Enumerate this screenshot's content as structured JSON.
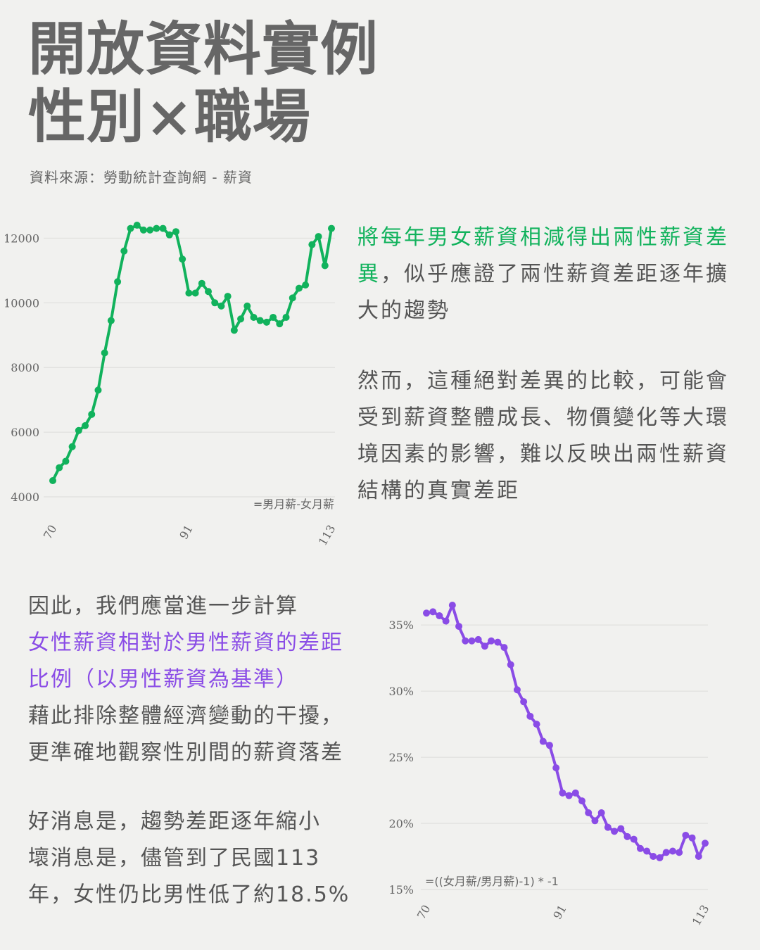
{
  "header": {
    "title_line1": "開放資料實例",
    "title_line2": "性別×職場",
    "source": "資料來源：勞動統計查詢網 - 薪資"
  },
  "text": {
    "p1_green": "將每年男女薪資相減得出兩性薪資差異",
    "p1_rest": "，似乎應證了兩性薪資差距逐年擴大的趨勢",
    "p2": "然而，這種絕對差異的比較，可能會受到薪資整體成長、物價變化等大環境因素的影響，難以反映出兩性薪資結構的真實差距",
    "p3_line1": "因此，我們應當進一步計算",
    "p3_purple_line1": "女性薪資相對於男性薪資的差距",
    "p3_purple_line2": "比例（以男性薪資為基準）",
    "p3_line4": "藉此排除整體經濟變動的干擾，",
    "p3_line5": "更準確地觀察性別間的薪資落差",
    "p4_line1": "好消息是，趨勢差距逐年縮小",
    "p4_line2": "壞消息是，儘管到了民國113",
    "p4_line3": "年，女性仍比男性低了約18.5%"
  },
  "chart_data": [
    {
      "type": "line",
      "color": "#11b25c",
      "annotation": "=男月薪-女月薪",
      "x": [
        70,
        71,
        72,
        73,
        74,
        75,
        76,
        77,
        78,
        79,
        80,
        81,
        82,
        83,
        84,
        85,
        86,
        87,
        88,
        89,
        90,
        91,
        92,
        93,
        94,
        95,
        96,
        97,
        98,
        99,
        100,
        101,
        102,
        103,
        104,
        105,
        106,
        107,
        108,
        109,
        110,
        111,
        112,
        113
      ],
      "x_ticks": [
        70,
        91,
        113
      ],
      "y_ticks": [
        4000,
        6000,
        8000,
        10000,
        12000
      ],
      "ylim": [
        4000,
        12400
      ],
      "series": [
        {
          "values": [
            4500,
            4900,
            5100,
            5550,
            6050,
            6200,
            6550,
            7300,
            8450,
            9450,
            10650,
            11600,
            12300,
            12400,
            12250,
            12250,
            12300,
            12300,
            12100,
            12200,
            11350,
            10300,
            10300,
            10600,
            10350,
            10000,
            9900,
            10200,
            9150,
            9500,
            9900,
            9550,
            9450,
            9400,
            9550,
            9350,
            9550,
            10150,
            10450,
            10550,
            11800,
            12050,
            11150,
            12300
          ]
        }
      ]
    },
    {
      "type": "line",
      "color": "#8a4ce6",
      "annotation": "=((女月薪/男月薪)-1) * -1",
      "x": [
        70,
        71,
        72,
        73,
        74,
        75,
        76,
        77,
        78,
        79,
        80,
        81,
        82,
        83,
        84,
        85,
        86,
        87,
        88,
        89,
        90,
        91,
        92,
        93,
        94,
        95,
        96,
        97,
        98,
        99,
        100,
        101,
        102,
        103,
        104,
        105,
        106,
        107,
        108,
        109,
        110,
        111,
        112,
        113
      ],
      "x_ticks": [
        70,
        91,
        113
      ],
      "y_ticks": [
        "35%",
        "30%",
        "25%",
        "20%",
        "15%"
      ],
      "ylim": [
        15,
        36.5
      ],
      "series": [
        {
          "values": [
            35.9,
            36.0,
            35.7,
            35.3,
            36.5,
            34.9,
            33.8,
            33.8,
            33.9,
            33.4,
            33.8,
            33.7,
            33.3,
            32.0,
            30.1,
            29.2,
            28.1,
            27.5,
            26.2,
            25.9,
            24.2,
            22.3,
            22.1,
            22.3,
            21.7,
            20.8,
            20.2,
            20.8,
            19.7,
            19.4,
            19.6,
            19.0,
            18.8,
            18.1,
            17.9,
            17.5,
            17.4,
            17.8,
            17.9,
            17.8,
            19.1,
            18.9,
            17.5,
            18.5
          ]
        }
      ]
    }
  ]
}
